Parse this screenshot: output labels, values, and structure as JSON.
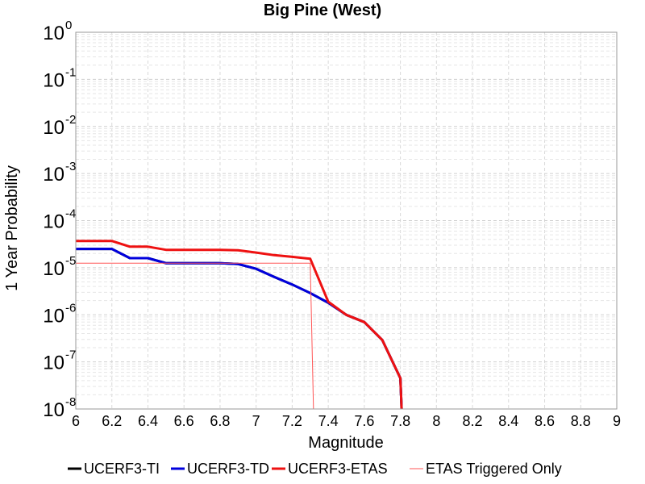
{
  "chart_data": {
    "type": "line",
    "title": "Big Pine (West)",
    "xlabel": "Magnitude",
    "ylabel": "1 Year Probability",
    "xlim": [
      6,
      9
    ],
    "ylim": [
      1e-08,
      1
    ],
    "yscale": "log",
    "grid": true,
    "legend_position": "bottom",
    "x_ticks": [
      "6",
      "6.2",
      "6.4",
      "6.6",
      "6.8",
      "7",
      "7.2",
      "7.4",
      "7.6",
      "7.8",
      "8",
      "8.2",
      "8.4",
      "8.6",
      "8.8",
      "9"
    ],
    "y_ticks": [
      {
        "base": "10",
        "exp": "0"
      },
      {
        "base": "10",
        "exp": "-1"
      },
      {
        "base": "10",
        "exp": "-2"
      },
      {
        "base": "10",
        "exp": "-3"
      },
      {
        "base": "10",
        "exp": "-4"
      },
      {
        "base": "10",
        "exp": "-5"
      },
      {
        "base": "10",
        "exp": "-6"
      },
      {
        "base": "10",
        "exp": "-7"
      },
      {
        "base": "10",
        "exp": "-8"
      }
    ],
    "series": [
      {
        "name": "UCERF3-TI",
        "color": "#000000",
        "width": 3,
        "x": [
          6.0,
          6.1,
          6.2,
          6.3,
          6.4,
          6.5,
          6.6,
          6.7,
          6.8,
          6.9,
          7.0,
          7.1,
          7.2,
          7.3,
          7.4,
          7.5,
          7.6,
          7.7,
          7.8,
          7.81
        ],
        "y": [
          2.5e-05,
          2.5e-05,
          2.5e-05,
          1.6e-05,
          1.6e-05,
          1.25e-05,
          1.25e-05,
          1.25e-05,
          1.25e-05,
          1.2e-05,
          9.5e-06,
          6.4e-06,
          4.4e-06,
          2.9e-06,
          1.8e-06,
          1e-06,
          7e-07,
          2.9e-07,
          4.5e-08,
          5e-09
        ]
      },
      {
        "name": "UCERF3-TD",
        "color": "#0000dd",
        "width": 3,
        "x": [
          6.0,
          6.1,
          6.2,
          6.3,
          6.4,
          6.5,
          6.6,
          6.7,
          6.8,
          6.9,
          7.0,
          7.1,
          7.2,
          7.3,
          7.4,
          7.5,
          7.6,
          7.7,
          7.8,
          7.81
        ],
        "y": [
          2.5e-05,
          2.5e-05,
          2.5e-05,
          1.6e-05,
          1.6e-05,
          1.25e-05,
          1.25e-05,
          1.25e-05,
          1.25e-05,
          1.2e-05,
          9.5e-06,
          6.4e-06,
          4.4e-06,
          2.9e-06,
          1.8e-06,
          1e-06,
          7e-07,
          2.9e-07,
          4.5e-08,
          5e-09
        ]
      },
      {
        "name": "UCERF3-ETAS",
        "color": "#ee1111",
        "width": 3,
        "x": [
          6.0,
          6.1,
          6.2,
          6.3,
          6.4,
          6.5,
          6.6,
          6.7,
          6.8,
          6.9,
          7.0,
          7.1,
          7.2,
          7.3,
          7.4,
          7.5,
          7.6,
          7.7,
          7.8,
          7.81
        ],
        "y": [
          3.7e-05,
          3.7e-05,
          3.7e-05,
          2.8e-05,
          2.8e-05,
          2.4e-05,
          2.4e-05,
          2.4e-05,
          2.4e-05,
          2.35e-05,
          2.1e-05,
          1.85e-05,
          1.7e-05,
          1.55e-05,
          1.9e-06,
          1e-06,
          7e-07,
          2.9e-07,
          4.5e-08,
          5e-09
        ]
      },
      {
        "name": "ETAS Triggered Only",
        "color": "#ff5555",
        "width": 1,
        "x": [
          6.0,
          6.1,
          6.2,
          6.3,
          6.4,
          6.5,
          6.6,
          6.7,
          6.8,
          6.9,
          7.0,
          7.1,
          7.2,
          7.3,
          7.32
        ],
        "y": [
          1.25e-05,
          1.25e-05,
          1.25e-05,
          1.25e-05,
          1.25e-05,
          1.25e-05,
          1.25e-05,
          1.25e-05,
          1.25e-05,
          1.25e-05,
          1.25e-05,
          1.25e-05,
          1.25e-05,
          1.25e-05,
          5e-09
        ]
      }
    ]
  }
}
